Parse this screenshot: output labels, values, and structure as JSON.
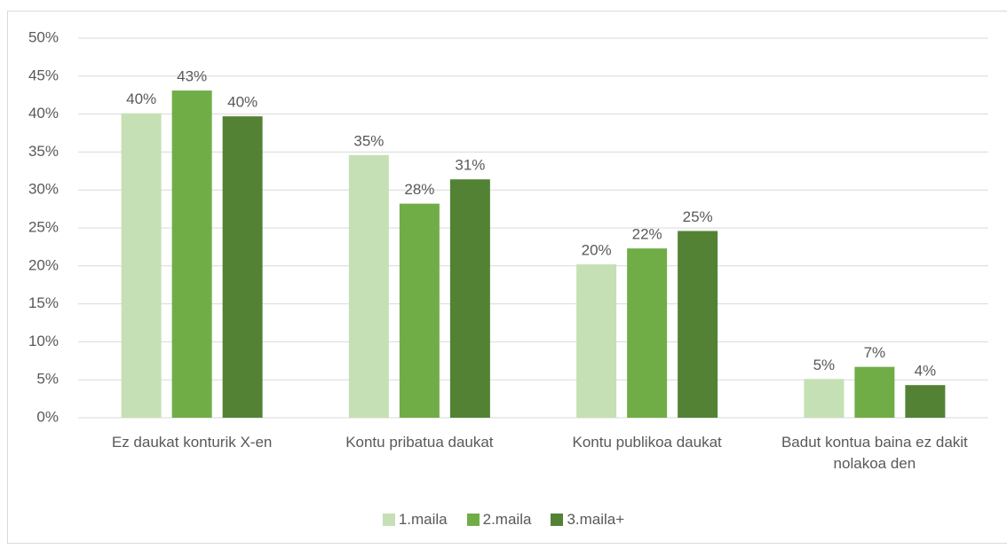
{
  "chart_data": {
    "type": "bar",
    "categories": [
      "Ez daukat konturik X-en",
      "Kontu pribatua daukat",
      "Kontu publikoa daukat",
      "Badut kontua baina ez dakit nolakoa den"
    ],
    "series": [
      {
        "name": "1.maila",
        "color": "#c5e0b4",
        "values": [
          40.1,
          34.6,
          20.2,
          5.1
        ],
        "value_labels": [
          "40%",
          "35%",
          "20%",
          "5%"
        ]
      },
      {
        "name": "2.maila",
        "color": "#70ad47",
        "values": [
          43.1,
          28.2,
          22.3,
          6.7
        ],
        "value_labels": [
          "43%",
          "28%",
          "22%",
          "7%"
        ]
      },
      {
        "name": "3.maila+",
        "color": "#548235",
        "values": [
          39.7,
          31.4,
          24.6,
          4.3
        ],
        "value_labels": [
          "40%",
          "31%",
          "25%",
          "4%"
        ]
      }
    ],
    "ylim": [
      0,
      50
    ],
    "yticks": [
      {
        "value": 0,
        "label": "0%"
      },
      {
        "value": 5,
        "label": "5%"
      },
      {
        "value": 10,
        "label": "10%"
      },
      {
        "value": 15,
        "label": "15%"
      },
      {
        "value": 20,
        "label": "20%"
      },
      {
        "value": 25,
        "label": "25%"
      },
      {
        "value": 30,
        "label": "30%"
      },
      {
        "value": 35,
        "label": "35%"
      },
      {
        "value": 40,
        "label": "40%"
      },
      {
        "value": 45,
        "label": "45%"
      },
      {
        "value": 50,
        "label": "50%"
      }
    ],
    "grid": true,
    "legend": "bottom"
  }
}
